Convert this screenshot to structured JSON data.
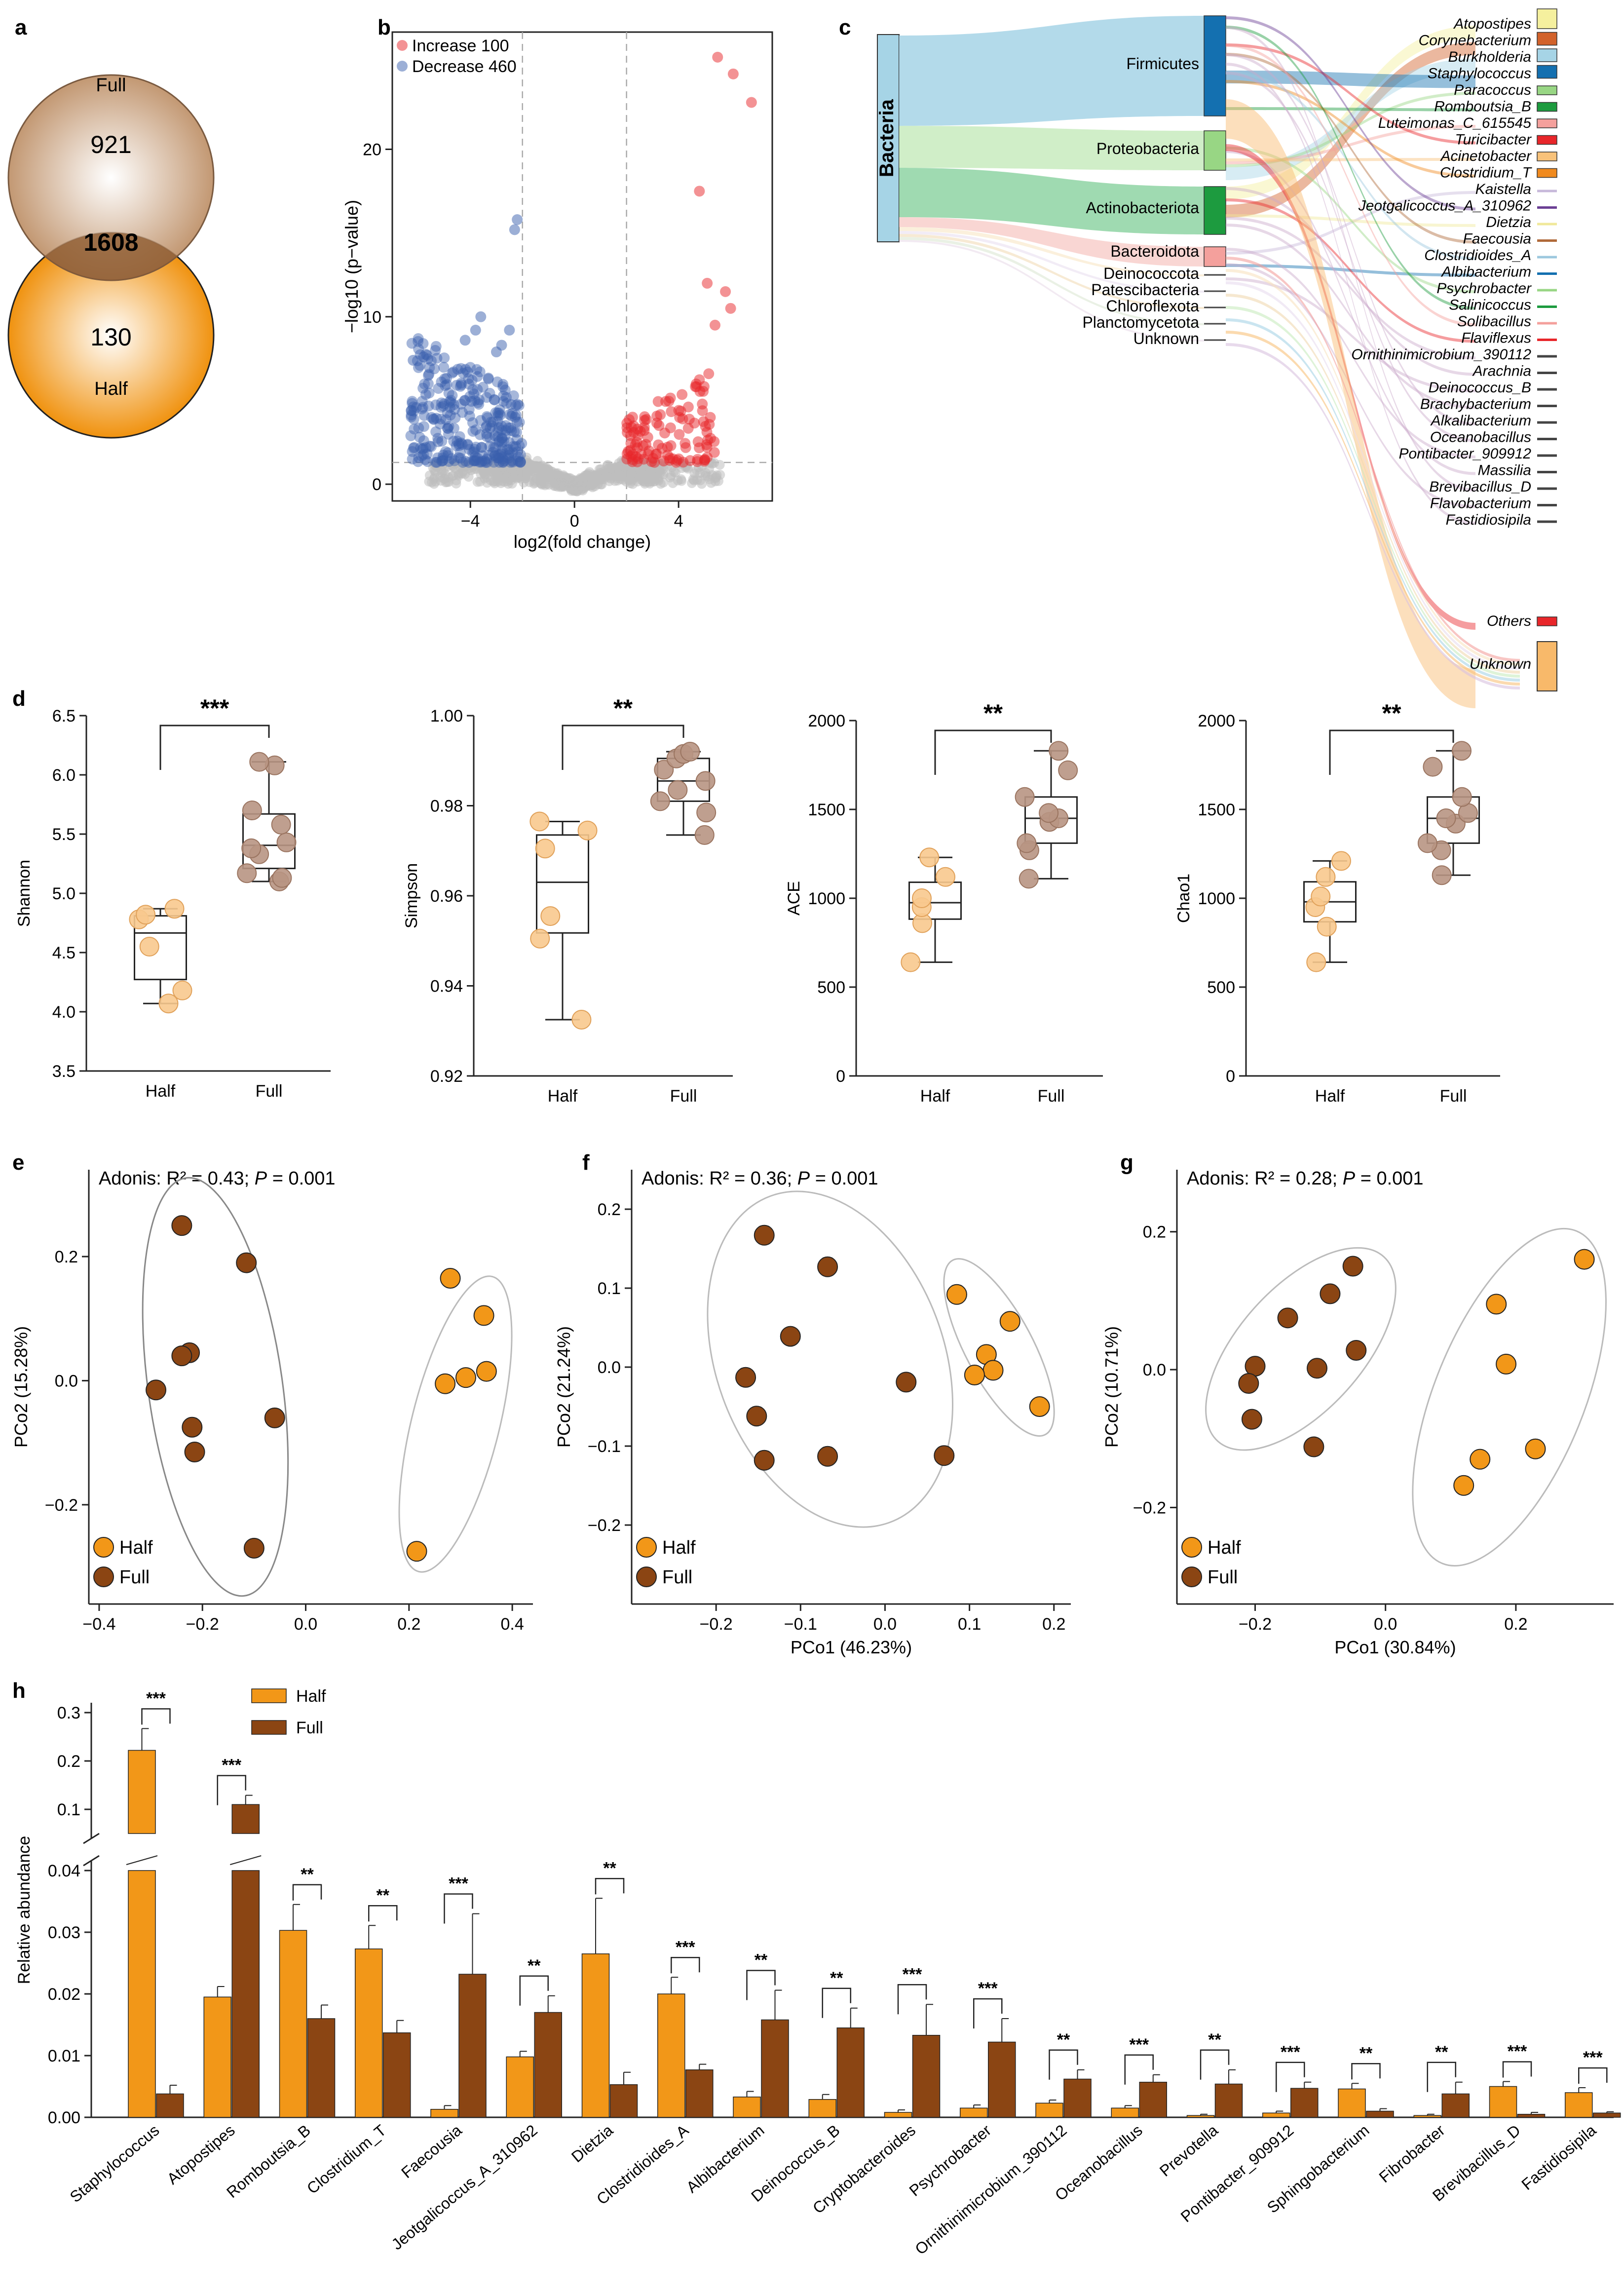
{
  "panels": {
    "a": "a",
    "b": "b",
    "c": "c",
    "d": "d",
    "e": "e",
    "f": "f",
    "g": "g",
    "h": "h"
  },
  "colors": {
    "half": "#F29718",
    "full": "#8B4513",
    "increase": "#E8262A",
    "decrease": "#3A5FAD",
    "grey": "#BDBDBD"
  },
  "chart_data": [
    {
      "id": "venn",
      "type": "venn",
      "sets": [
        {
          "name": "Full",
          "only": 921
        },
        {
          "name": "Half",
          "only": 130
        }
      ],
      "intersection": 1608
    },
    {
      "id": "volcano",
      "type": "scatter",
      "xlabel": "log2(fold change)",
      "ylabel": "−log10 (p−value)",
      "xlim": [
        -7,
        7.6
      ],
      "ylim": [
        -1,
        27
      ],
      "xticks": [
        -4,
        0,
        4
      ],
      "yticks": [
        0,
        10,
        20
      ],
      "thresholds": {
        "fc": [
          -2,
          2
        ],
        "p": 1.3
      },
      "legend": [
        {
          "label": "Increase 100",
          "series": "increase"
        },
        {
          "label": "Decrease 460",
          "series": "decrease"
        }
      ],
      "increase_top": [
        [
          5.5,
          25.5
        ],
        [
          6.1,
          24.5
        ],
        [
          6.8,
          22.8
        ],
        [
          4.8,
          17.5
        ],
        [
          5.1,
          12
        ],
        [
          5.8,
          11.5
        ],
        [
          6,
          10.5
        ],
        [
          5.4,
          9.5
        ]
      ],
      "decrease_top": [
        [
          -2.2,
          15.8
        ],
        [
          -2.3,
          15.2
        ],
        [
          -3.6,
          10
        ],
        [
          -3.8,
          9.2
        ],
        [
          -4.2,
          8.6
        ],
        [
          -2.5,
          9.2
        ],
        [
          -5.8,
          7.6
        ],
        [
          -6.2,
          7.4
        ],
        [
          -2.8,
          8.3
        ],
        [
          -3,
          7.9
        ]
      ]
    },
    {
      "id": "sankey",
      "type": "sankey",
      "root": "Bacteria",
      "phyla": [
        {
          "name": "Firmicutes",
          "color": "#1470B0"
        },
        {
          "name": "Proteobacteria",
          "color": "#98D684"
        },
        {
          "name": "Actinobacteriota",
          "color": "#1D9B3F"
        },
        {
          "name": "Bacteroidota",
          "color": "#F4A09C"
        },
        {
          "name": "Deinococcota",
          "color": "#444444"
        },
        {
          "name": "Patescibacteria",
          "color": "#444444"
        },
        {
          "name": "Chloroflexota",
          "color": "#444444"
        },
        {
          "name": "Planctomycetota",
          "color": "#444444"
        },
        {
          "name": "Unknown",
          "color": "#444444"
        }
      ],
      "genera": [
        {
          "name": "Atopostipes",
          "color": "#F5F09E",
          "box": true
        },
        {
          "name": "Corynebacterium",
          "color": "#D2622B",
          "box": true
        },
        {
          "name": "Burkholderia",
          "color": "#A6D4E6",
          "box": true
        },
        {
          "name": "Staphylococcus",
          "color": "#1470B0",
          "box": true
        },
        {
          "name": "Paracoccus",
          "color": "#98D684",
          "box": true
        },
        {
          "name": "Romboutsia_B",
          "color": "#1D9B3F",
          "box": true
        },
        {
          "name": "Luteimonas_C_615545",
          "color": "#F4A09C",
          "box": true
        },
        {
          "name": "Turicibacter",
          "color": "#E8262A",
          "box": true
        },
        {
          "name": "Acinetobacter",
          "color": "#F8C27A",
          "box": true
        },
        {
          "name": "Clostridium_T",
          "color": "#F08A1E",
          "box": true
        },
        {
          "name": "Kaistella",
          "color": "#C7B8DA",
          "box": false
        },
        {
          "name": "Jeotgalicoccus_A_310962",
          "color": "#6B3F94",
          "box": false
        },
        {
          "name": "Dietzia",
          "color": "#F0E89A",
          "box": false
        },
        {
          "name": "Faecousia",
          "color": "#B06A3A",
          "box": false
        },
        {
          "name": "Clostridioides_A",
          "color": "#9CC8DE",
          "box": false
        },
        {
          "name": "Albibacterium",
          "color": "#1470B0",
          "box": false
        },
        {
          "name": "Psychrobacter",
          "color": "#98D684",
          "box": false
        },
        {
          "name": "Salinicoccus",
          "color": "#1D9B3F",
          "box": false
        },
        {
          "name": "Solibacillus",
          "color": "#F4A09C",
          "box": false
        },
        {
          "name": "Flaviflexus",
          "color": "#E8262A",
          "box": false
        },
        {
          "name": "Ornithinimicrobium_390112",
          "color": "#444444",
          "box": false
        },
        {
          "name": "Arachnia",
          "color": "#444444",
          "box": false
        },
        {
          "name": "Deinococcus_B",
          "color": "#444444",
          "box": false
        },
        {
          "name": "Brachybacterium",
          "color": "#444444",
          "box": false
        },
        {
          "name": "Alkalibacterium",
          "color": "#444444",
          "box": false
        },
        {
          "name": "Oceanobacillus",
          "color": "#444444",
          "box": false
        },
        {
          "name": "Pontibacter_909912",
          "color": "#444444",
          "box": false
        },
        {
          "name": "Massilia",
          "color": "#444444",
          "box": false
        },
        {
          "name": "Brevibacillus_D",
          "color": "#444444",
          "box": false
        },
        {
          "name": "Flavobacterium",
          "color": "#444444",
          "box": false
        },
        {
          "name": "Fastidiosipila",
          "color": "#444444",
          "box": false
        },
        {
          "name": "Others",
          "color": "#E8262A",
          "box": true
        },
        {
          "name": "Unknown",
          "color": "#F8B96A",
          "box": true
        }
      ]
    },
    {
      "id": "alpha",
      "type": "box",
      "groups": [
        "Half",
        "Full"
      ],
      "plots": [
        {
          "ylabel": "Shannon",
          "ylim": [
            3.5,
            6.5
          ],
          "yticks": [
            "3.5",
            "4.0",
            "4.5",
            "5.0",
            "5.5",
            "6.0",
            "6.5"
          ],
          "sig": "***",
          "half": [
            4.07,
            4.18,
            4.55,
            4.78,
            4.82,
            4.87
          ],
          "full": [
            5.1,
            5.13,
            5.17,
            5.33,
            5.38,
            5.43,
            5.58,
            5.7,
            6.08,
            6.11
          ]
        },
        {
          "ylabel": "Simpson",
          "ylim": [
            0.92,
            1.0
          ],
          "yticks": [
            "0.92",
            "0.94",
            "0.96",
            "0.98",
            "1.00"
          ],
          "sig": "**",
          "half": [
            0.9325,
            0.9505,
            0.9555,
            0.9705,
            0.9745,
            0.9765
          ],
          "full": [
            0.9735,
            0.9785,
            0.981,
            0.9835,
            0.9855,
            0.988,
            0.9905,
            0.9915,
            0.992
          ]
        },
        {
          "ylabel": "ACE",
          "ylim": [
            0,
            2000
          ],
          "yticks": [
            "0",
            "500",
            "1000",
            "1500",
            "2000"
          ],
          "sig": "**",
          "half": [
            640,
            860,
            950,
            1000,
            1120,
            1230
          ],
          "full": [
            1110,
            1270,
            1310,
            1430,
            1450,
            1480,
            1570,
            1720,
            1830
          ]
        },
        {
          "ylabel": "Chao1",
          "ylim": [
            0,
            2000
          ],
          "yticks": [
            "0",
            "500",
            "1000",
            "1500",
            "2000"
          ],
          "sig": "**",
          "half": [
            640,
            840,
            950,
            1010,
            1120,
            1210
          ],
          "full": [
            1130,
            1270,
            1310,
            1420,
            1450,
            1480,
            1570,
            1740,
            1830
          ]
        }
      ]
    },
    {
      "id": "pcoa_e",
      "type": "scatter",
      "title": "Adonis: R² = 0.43; P = 0.001",
      "xlabel": "",
      "ylabel": "PCo2 (15.28%)",
      "xlim": [
        -0.42,
        0.44
      ],
      "ylim": [
        -0.36,
        0.34
      ],
      "xticks": [
        -0.4,
        -0.2,
        0.0,
        0.2,
        0.4
      ],
      "yticks": [
        -0.2,
        0.0,
        0.2
      ],
      "half": [
        [
          0.28,
          0.165
        ],
        [
          0.345,
          0.105
        ],
        [
          0.31,
          0.005
        ],
        [
          0.35,
          0.015
        ],
        [
          0.27,
          -0.005
        ],
        [
          0.215,
          -0.275
        ]
      ],
      "full": [
        [
          -0.24,
          0.25
        ],
        [
          -0.115,
          0.19
        ],
        [
          -0.225,
          0.045
        ],
        [
          -0.24,
          0.04
        ],
        [
          -0.29,
          -0.015
        ],
        [
          -0.22,
          -0.075
        ],
        [
          -0.215,
          -0.115
        ],
        [
          -0.06,
          -0.06
        ],
        [
          -0.1,
          -0.27
        ]
      ],
      "ellipses": [
        {
          "cx": -0.175,
          "cy": -0.01,
          "rx": 0.13,
          "ry": 0.34,
          "rot": -8,
          "color": "#888888"
        },
        {
          "cx": 0.29,
          "cy": -0.07,
          "rx": 0.085,
          "ry": 0.245,
          "rot": 14,
          "color": "#BBBBBB"
        }
      ]
    },
    {
      "id": "pcoa_f",
      "type": "scatter",
      "title": "Adonis: R² = 0.36; P = 0.001",
      "xlabel": "PCo1 (46.23%)",
      "ylabel": "PCo2 (21.24%)",
      "xlim": [
        -0.3,
        0.22
      ],
      "ylim": [
        -0.3,
        0.25
      ],
      "xticks": [
        -0.2,
        -0.1,
        0.0,
        0.1,
        0.2
      ],
      "yticks": [
        -0.2,
        -0.1,
        0.0,
        0.1,
        0.2
      ],
      "half": [
        [
          0.085,
          0.092
        ],
        [
          0.148,
          0.058
        ],
        [
          0.12,
          0.016
        ],
        [
          0.128,
          -0.004
        ],
        [
          0.106,
          -0.01
        ],
        [
          0.183,
          -0.05
        ]
      ],
      "full": [
        [
          -0.143,
          0.167
        ],
        [
          -0.068,
          0.127
        ],
        [
          -0.112,
          0.039
        ],
        [
          -0.165,
          -0.013
        ],
        [
          0.025,
          -0.019
        ],
        [
          -0.152,
          -0.062
        ],
        [
          -0.143,
          -0.118
        ],
        [
          -0.068,
          -0.113
        ],
        [
          0.07,
          -0.112
        ]
      ],
      "ellipses": [
        {
          "cx": -0.065,
          "cy": 0.01,
          "rx": 0.135,
          "ry": 0.22,
          "rot": -20,
          "color": "#BBBBBB"
        },
        {
          "cx": 0.135,
          "cy": 0.025,
          "rx": 0.04,
          "ry": 0.125,
          "rot": -28,
          "color": "#BBBBBB"
        }
      ]
    },
    {
      "id": "pcoa_g",
      "type": "scatter",
      "title": "Adonis: R² = 0.28; P = 0.001",
      "xlabel": "PCo1 (30.84%)",
      "ylabel": "PCo2 (10.71%)",
      "xlim": [
        -0.32,
        0.35
      ],
      "ylim": [
        -0.34,
        0.29
      ],
      "xticks": [
        -0.2,
        0.0,
        0.2
      ],
      "yticks": [
        -0.2,
        0.0,
        0.2
      ],
      "half": [
        [
          0.305,
          0.16
        ],
        [
          0.17,
          0.095
        ],
        [
          0.185,
          0.008
        ],
        [
          0.23,
          -0.115
        ],
        [
          0.145,
          -0.13
        ],
        [
          0.12,
          -0.168
        ]
      ],
      "full": [
        [
          -0.05,
          0.15
        ],
        [
          -0.085,
          0.11
        ],
        [
          -0.15,
          0.075
        ],
        [
          -0.105,
          0.002
        ],
        [
          -0.045,
          0.028
        ],
        [
          -0.2,
          0.005
        ],
        [
          -0.21,
          -0.02
        ],
        [
          -0.205,
          -0.072
        ],
        [
          -0.11,
          -0.112
        ]
      ],
      "ellipses": [
        {
          "cx": -0.13,
          "cy": 0.03,
          "rx": 0.095,
          "ry": 0.18,
          "rot": 42,
          "color": "#BBBBBB"
        },
        {
          "cx": 0.19,
          "cy": -0.04,
          "rx": 0.115,
          "ry": 0.26,
          "rot": 22,
          "color": "#BBBBBB"
        }
      ]
    },
    {
      "id": "bars",
      "type": "bar",
      "ylabel": "Relative abundance",
      "yticks_low": [
        "0.00",
        "0.01",
        "0.02",
        "0.03",
        "0.04"
      ],
      "yticks_high": [
        "0.1",
        "0.2",
        "0.3"
      ],
      "legend": [
        "Half",
        "Full"
      ],
      "categories": [
        "Staphylococcus",
        "Atopostipes",
        "Romboutsia_B",
        "Clostridium_T",
        "Faecousia",
        "Jeotgalicoccus_A_310962",
        "Dietzia",
        "Clostridioides_A",
        "Albibacterium",
        "Deinococcus_B",
        "Cryptobacteroides",
        "Psychrobacter",
        "Ornithinimicrobium_390112",
        "Oceanobacillus",
        "Prevotella",
        "Pontibacter_909912",
        "Sphingobacterium",
        "Fibrobacter",
        "Brevibacillus_D",
        "Fastidiosipila"
      ],
      "series": [
        {
          "name": "Half",
          "values": [
            0.222,
            0.0195,
            0.0303,
            0.0273,
            0.0013,
            0.0098,
            0.0265,
            0.02,
            0.0033,
            0.0029,
            0.0008,
            0.0015,
            0.0023,
            0.0015,
            0.0003,
            0.0007,
            0.0046,
            0.0003,
            0.005,
            0.004
          ],
          "errors": [
            0.045,
            0.0017,
            0.0042,
            0.0038,
            0.0006,
            0.0009,
            0.009,
            0.0027,
            0.0009,
            0.0008,
            0.0004,
            0.0005,
            0.0005,
            0.0004,
            0.0002,
            0.0003,
            0.0009,
            0.0002,
            0.0008,
            0.0008
          ]
        },
        {
          "name": "Full",
          "values": [
            0.0038,
            0.11,
            0.016,
            0.0137,
            0.0232,
            0.017,
            0.0053,
            0.0077,
            0.0158,
            0.0145,
            0.0133,
            0.0122,
            0.0062,
            0.0057,
            0.0054,
            0.0047,
            0.001,
            0.0038,
            0.0005,
            0.0007
          ],
          "errors": [
            0.0014,
            0.019,
            0.0022,
            0.002,
            0.0098,
            0.0027,
            0.002,
            0.0009,
            0.0048,
            0.0032,
            0.005,
            0.0038,
            0.0015,
            0.0012,
            0.0023,
            0.001,
            0.0004,
            0.0019,
            0.0003,
            0.0002
          ]
        }
      ],
      "sig": [
        "***",
        "***",
        "**",
        "**",
        "***",
        "**",
        "**",
        "***",
        "**",
        "**",
        "***",
        "***",
        "**",
        "***",
        "**",
        "***",
        "**",
        "**",
        "***",
        "***"
      ]
    }
  ]
}
